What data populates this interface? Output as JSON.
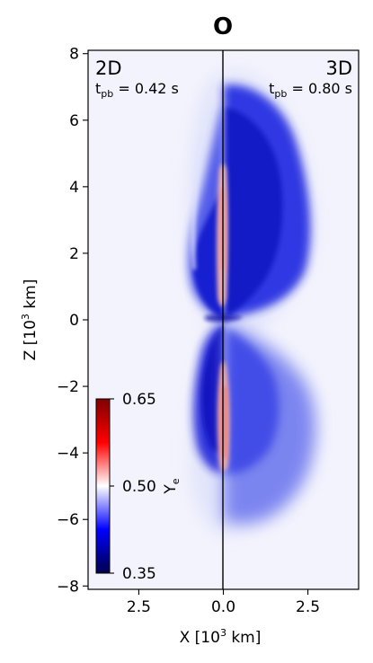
{
  "chart_data": {
    "type": "heatmap",
    "title": "O",
    "xlabel": "X [10^3 km]",
    "ylabel": "Z [10^3 km]",
    "xlim": [
      -4,
      4
    ],
    "ylim": [
      -8.1,
      8.1
    ],
    "x_tick_values": [
      -2.5,
      0,
      2.5
    ],
    "x_tick_labels": [
      "2.5",
      "0.0",
      "2.5"
    ],
    "y_ticks": [
      -8,
      -6,
      -4,
      -2,
      0,
      2,
      4,
      6,
      8
    ],
    "y_tick_labels": [
      "−8",
      "−6",
      "−4",
      "−2",
      "0",
      "2",
      "4",
      "6",
      "8"
    ],
    "grid": false,
    "panels": [
      {
        "side": "left",
        "label": "2D",
        "time_prefix": "t",
        "time_subscript": "pb",
        "time_value": " = 0.42 s"
      },
      {
        "side": "right",
        "label": "3D",
        "time_prefix": "t",
        "time_subscript": "pb",
        "time_value": " = 0.80 s"
      }
    ],
    "colorbar": {
      "quantity_symbol": "Y",
      "quantity_subscript": "e",
      "range": [
        0.35,
        0.65
      ],
      "ticks": [
        0.35,
        0.5,
        0.65
      ],
      "tick_labels": [
        "0.35",
        "0.50",
        "0.65"
      ],
      "colormap": "seismic",
      "colors": {
        "low": "#00004c",
        "mid_low": "#0000ff",
        "center": "#ffffff",
        "mid_high": "#ff0000",
        "high": "#7f0000"
      }
    },
    "colors": {
      "background": "#f3f3fd",
      "divider": "#000000"
    }
  }
}
